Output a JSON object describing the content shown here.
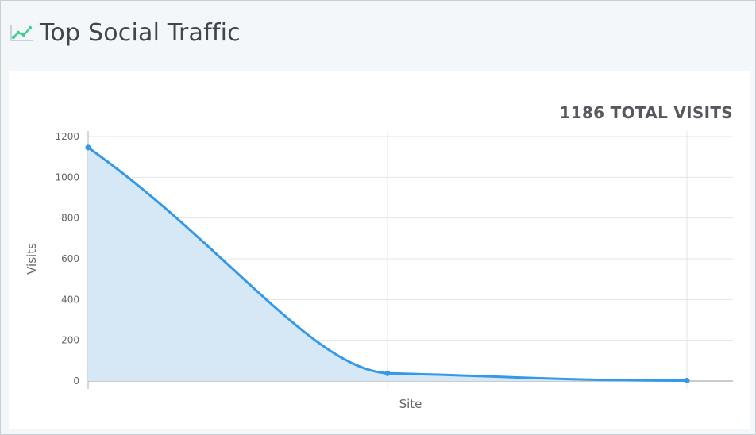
{
  "header": {
    "title": "Top Social Traffic",
    "icon": "line-chart-icon"
  },
  "summary": {
    "total_label": "1186 TOTAL VISITS"
  },
  "colors": {
    "line": "#3399e8",
    "fill": "#d6e7f6",
    "icon": "#3ecf8e"
  },
  "chart_data": {
    "type": "area",
    "x": [
      "",
      "",
      ""
    ],
    "series": [
      {
        "values": [
          1146,
          38,
          2
        ]
      }
    ],
    "xlabel": "Site",
    "ylabel": "Visits",
    "ylim": [
      0,
      1200
    ],
    "yticks": [
      0,
      200,
      400,
      600,
      800,
      1000,
      1200
    ],
    "grid": true
  }
}
